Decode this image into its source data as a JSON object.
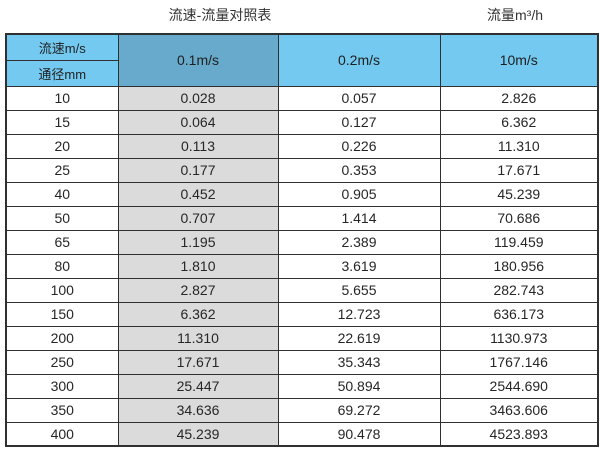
{
  "page": {
    "title_left": "流速-流量对照表",
    "title_right": "流量m³/h"
  },
  "colors": {
    "header_blue": "#74C9F0",
    "header_muted_blue": "#68AACB",
    "gray_column": "#DBDBDB",
    "border": "#303030"
  },
  "table": {
    "corner_top": "流速m/s",
    "corner_bottom": "通径mm",
    "speed_columns": [
      "0.1m/s",
      "0.2m/s",
      "10m/s"
    ],
    "rows": [
      {
        "dn": "10",
        "v": [
          "0.028",
          "0.057",
          "2.826"
        ]
      },
      {
        "dn": "15",
        "v": [
          "0.064",
          "0.127",
          "6.362"
        ]
      },
      {
        "dn": "20",
        "v": [
          "0.113",
          "0.226",
          "11.310"
        ]
      },
      {
        "dn": "25",
        "v": [
          "0.177",
          "0.353",
          "17.671"
        ]
      },
      {
        "dn": "40",
        "v": [
          "0.452",
          "0.905",
          "45.239"
        ]
      },
      {
        "dn": "50",
        "v": [
          "0.707",
          "1.414",
          "70.686"
        ]
      },
      {
        "dn": "65",
        "v": [
          "1.195",
          "2.389",
          "119.459"
        ]
      },
      {
        "dn": "80",
        "v": [
          "1.810",
          "3.619",
          "180.956"
        ]
      },
      {
        "dn": "100",
        "v": [
          "2.827",
          "5.655",
          "282.743"
        ]
      },
      {
        "dn": "150",
        "v": [
          "6.362",
          "12.723",
          "636.173"
        ]
      },
      {
        "dn": "200",
        "v": [
          "11.310",
          "22.619",
          "1130.973"
        ]
      },
      {
        "dn": "250",
        "v": [
          "17.671",
          "35.343",
          "1767.146"
        ]
      },
      {
        "dn": "300",
        "v": [
          "25.447",
          "50.894",
          "2544.690"
        ]
      },
      {
        "dn": "350",
        "v": [
          "34.636",
          "69.272",
          "3463.606"
        ]
      },
      {
        "dn": "400",
        "v": [
          "45.239",
          "90.478",
          "4523.893"
        ]
      }
    ]
  }
}
